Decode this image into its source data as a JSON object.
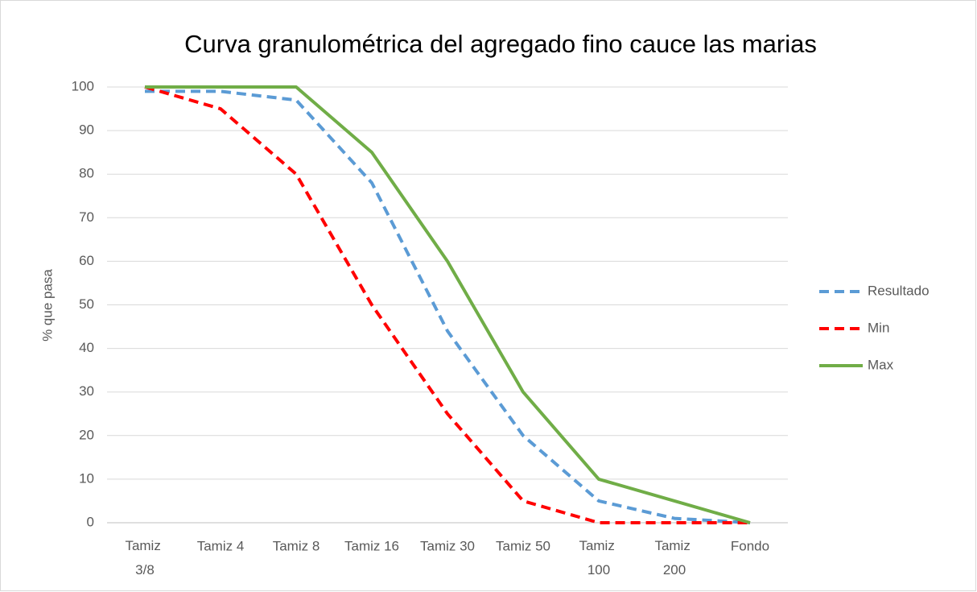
{
  "chart_data": {
    "type": "line",
    "title": "Curva granulométrica del agregado fino cauce las marias",
    "ylabel": "% que pasa",
    "categories": [
      "Tamiz 3/8",
      "Tamiz 4",
      "Tamiz 8",
      "Tamiz 16",
      "Tamiz 30",
      "Tamiz 50",
      "Tamiz 100",
      "Tamiz 200",
      "Fondo"
    ],
    "series": [
      {
        "name": "Resultado",
        "color": "#5b9bd5",
        "dashed": true,
        "values": [
          99,
          99,
          97,
          78,
          44,
          20,
          5,
          1,
          0
        ]
      },
      {
        "name": "Min",
        "color": "#ff0000",
        "dashed": true,
        "values": [
          100,
          95,
          80,
          50,
          25,
          5,
          0,
          0,
          0
        ]
      },
      {
        "name": "Max",
        "color": "#70ad47",
        "dashed": false,
        "values": [
          100,
          100,
          100,
          85,
          60,
          30,
          10,
          5,
          0
        ]
      }
    ],
    "ylim": [
      0,
      100
    ],
    "yticks": [
      0,
      10,
      20,
      30,
      40,
      50,
      60,
      70,
      80,
      90,
      100
    ],
    "grid": true,
    "legend": "right"
  }
}
